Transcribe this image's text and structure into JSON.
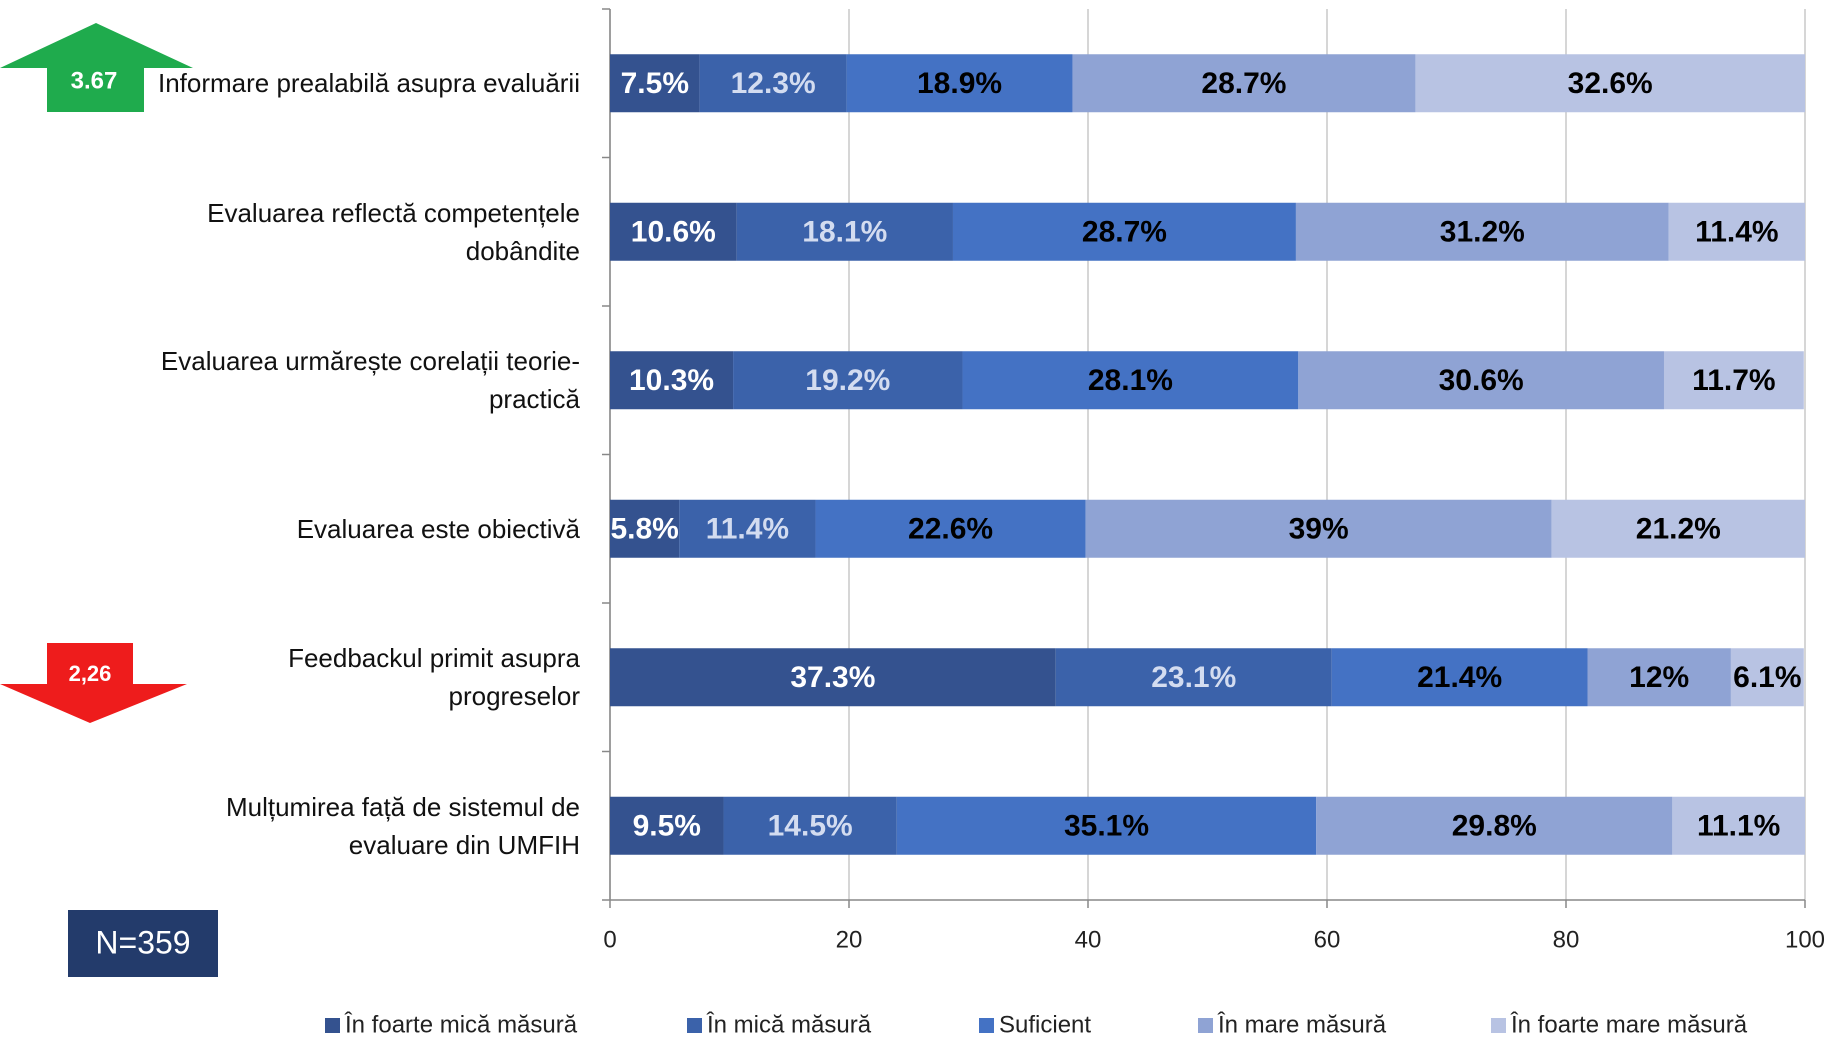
{
  "chart_data": {
    "type": "stacked_barh",
    "categories": [
      "Informare prealabilă asupra evaluării",
      "Evaluarea reflectă competențele dobândite",
      "Evaluarea urmărește corelații teorie-practică",
      "Evaluarea este obiectivă",
      "Feedbackul primit asupra progreselor",
      "Mulțumirea față de sistemul de evaluare din UMFIH"
    ],
    "series": [
      {
        "name": "În foarte mică măsură",
        "color": "#34528f",
        "label_color": "#ffffff",
        "values": [
          7.5,
          10.6,
          10.3,
          5.8,
          37.3,
          9.5
        ],
        "value_labels": [
          "7.5%",
          "10.6%",
          "10.3%",
          "5.8%",
          "37.3%",
          "9.5%"
        ]
      },
      {
        "name": "În mică măsură",
        "color": "#3b62aa",
        "label_color": "#d3dcf0",
        "values": [
          12.3,
          18.1,
          19.2,
          11.4,
          23.1,
          14.5
        ],
        "value_labels": [
          "12.3%",
          "18.1%",
          "19.2%",
          "11.4%",
          "23.1%",
          "14.5%"
        ]
      },
      {
        "name": "Suficient",
        "color": "#4472c4",
        "label_color": "#000000",
        "values": [
          18.9,
          28.7,
          28.1,
          22.6,
          21.4,
          35.1
        ],
        "value_labels": [
          "18.9%",
          "28.7%",
          "28.1%",
          "22.6%",
          "21.4%",
          "35.1%"
        ]
      },
      {
        "name": "În mare măsură",
        "color": "#8fa3d4",
        "label_color": "#000000",
        "values": [
          28.7,
          31.2,
          30.6,
          39,
          12,
          29.8
        ],
        "value_labels": [
          "28.7%",
          "31.2%",
          "30.6%",
          "39%",
          "12%",
          "29.8%"
        ]
      },
      {
        "name": "În foarte mare măsură",
        "color": "#b8c3e3",
        "label_color": "#000000",
        "values": [
          32.6,
          11.4,
          11.7,
          21.2,
          6.1,
          11.1
        ],
        "value_labels": [
          "32.6%",
          "11.4%",
          "11.7%",
          "21.2%",
          "6.1%",
          "11.1%"
        ]
      }
    ],
    "xlim": [
      0,
      100
    ],
    "xticks": [
      0,
      20,
      40,
      60,
      80,
      100
    ],
    "grid": true,
    "legend": "bottom",
    "annotations": [
      "3.67",
      "2,26",
      "N=359"
    ]
  }
}
